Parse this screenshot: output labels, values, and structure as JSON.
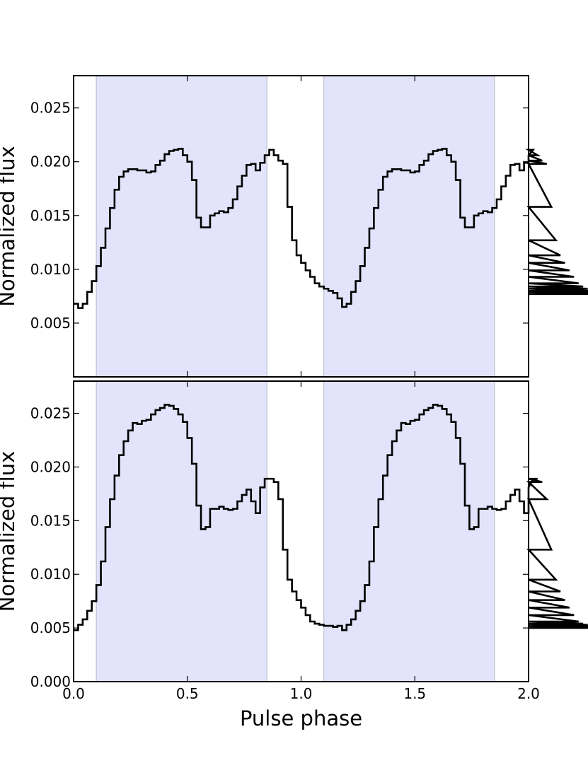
{
  "chart_data": [
    {
      "type": "line",
      "step": true,
      "panel": "top",
      "xlim": [
        0.0,
        2.0
      ],
      "ylim": [
        0.0,
        0.028
      ],
      "xlabel": "",
      "ylabel": "Normalized flux",
      "x_ticks": [
        0.0,
        0.5,
        1.0,
        1.5,
        2.0
      ],
      "x_tick_labels_shown": false,
      "y_ticks": [
        0.005,
        0.01,
        0.015,
        0.02,
        0.025
      ],
      "y_tick_labels": [
        "0.005",
        "0.010",
        "0.015",
        "0.020",
        "0.025"
      ],
      "shaded_regions": [
        [
          0.1,
          0.85
        ],
        [
          1.1,
          1.85
        ]
      ],
      "shade_color": "#e3e3fb",
      "shade_edge_color": "#c8c8d8",
      "line_color": "#000000",
      "bin_width": 0.02,
      "x_start": 0.0,
      "values": [
        0.0068,
        0.0064,
        0.0068,
        0.0079,
        0.0089,
        0.0103,
        0.012,
        0.0138,
        0.0157,
        0.0174,
        0.0186,
        0.0191,
        0.0193,
        0.0193,
        0.0192,
        0.0192,
        0.019,
        0.0191,
        0.0197,
        0.0201,
        0.0207,
        0.021,
        0.0211,
        0.0212,
        0.0206,
        0.02,
        0.0183,
        0.0148,
        0.0139,
        0.0139,
        0.015,
        0.0152,
        0.0154,
        0.0153,
        0.0157,
        0.0165,
        0.0177,
        0.0187,
        0.0197,
        0.0198,
        0.0192,
        0.0199,
        0.0206,
        0.0211,
        0.0206,
        0.0201,
        0.0198,
        0.0158,
        0.0127,
        0.0113,
        0.0106,
        0.0099,
        0.0093,
        0.0087,
        0.0084,
        0.0082,
        0.008,
        0.0078,
        0.0073,
        0.0065,
        0.0068,
        0.0079,
        0.0089,
        0.0103,
        0.012,
        0.0138,
        0.0157,
        0.0174,
        0.0186,
        0.0191,
        0.0193,
        0.0193,
        0.0192,
        0.0192,
        0.019,
        0.0191,
        0.0197,
        0.0201,
        0.0207,
        0.021,
        0.0211,
        0.0212,
        0.0206,
        0.02,
        0.0183,
        0.0148,
        0.0139,
        0.0139,
        0.015,
        0.0152,
        0.0154,
        0.0153,
        0.0157,
        0.0165,
        0.0177,
        0.0187,
        0.0197,
        0.0198,
        0.0192,
        0.0199,
        0.0206,
        0.0211,
        0.0206,
        0.0201,
        0.0198,
        0.0158,
        0.0127,
        0.0113,
        0.0106,
        0.0099,
        0.0093,
        0.0087,
        0.0084,
        0.0082,
        0.008,
        0.0079,
        0.0077,
        0.0077
      ]
    },
    {
      "type": "line",
      "step": true,
      "panel": "bottom",
      "xlim": [
        0.0,
        2.0
      ],
      "ylim": [
        0.0,
        0.028
      ],
      "xlabel": "Pulse phase",
      "ylabel": "Normalized flux",
      "x_ticks": [
        0.0,
        0.5,
        1.0,
        1.5,
        2.0
      ],
      "x_tick_labels": [
        "0.0",
        "0.5",
        "1.0",
        "1.5",
        "2.0"
      ],
      "x_tick_labels_shown": true,
      "y_ticks": [
        0.0,
        0.005,
        0.01,
        0.015,
        0.02,
        0.025
      ],
      "y_tick_labels": [
        "0.000",
        "0.005",
        "0.010",
        "0.015",
        "0.020",
        "0.025"
      ],
      "shaded_regions": [
        [
          0.1,
          0.85
        ],
        [
          1.1,
          1.85
        ]
      ],
      "shade_color": "#e3e3fb",
      "shade_edge_color": "#c8c8d8",
      "line_color": "#000000",
      "bin_width": 0.02,
      "x_start": 0.0,
      "values": [
        0.0048,
        0.0053,
        0.0058,
        0.0066,
        0.0075,
        0.009,
        0.0112,
        0.0144,
        0.017,
        0.0192,
        0.0211,
        0.0224,
        0.0234,
        0.0241,
        0.024,
        0.0243,
        0.0244,
        0.0249,
        0.0253,
        0.0255,
        0.0258,
        0.0257,
        0.0254,
        0.0249,
        0.0242,
        0.0227,
        0.0203,
        0.0164,
        0.0142,
        0.0144,
        0.0161,
        0.0161,
        0.0163,
        0.0161,
        0.016,
        0.0161,
        0.0168,
        0.0174,
        0.0179,
        0.0168,
        0.0157,
        0.0181,
        0.0189,
        0.0189,
        0.0186,
        0.017,
        0.0123,
        0.0095,
        0.0084,
        0.0076,
        0.0069,
        0.0062,
        0.0056,
        0.0054,
        0.0053,
        0.0052,
        0.0052,
        0.0051,
        0.0052,
        0.0048,
        0.0053,
        0.0058,
        0.0066,
        0.0075,
        0.009,
        0.0112,
        0.0144,
        0.017,
        0.0192,
        0.0211,
        0.0224,
        0.0234,
        0.0241,
        0.024,
        0.0243,
        0.0244,
        0.0249,
        0.0253,
        0.0255,
        0.0258,
        0.0257,
        0.0254,
        0.0249,
        0.0242,
        0.0227,
        0.0203,
        0.0164,
        0.0142,
        0.0144,
        0.0161,
        0.0161,
        0.0163,
        0.0161,
        0.016,
        0.0161,
        0.0168,
        0.0174,
        0.0179,
        0.0168,
        0.0157,
        0.0181,
        0.0189,
        0.0189,
        0.0186,
        0.017,
        0.0123,
        0.0095,
        0.0084,
        0.0076,
        0.0069,
        0.0062,
        0.0056,
        0.0054,
        0.0053,
        0.0052,
        0.0052,
        0.0052,
        0.0051,
        0.005
      ]
    }
  ]
}
